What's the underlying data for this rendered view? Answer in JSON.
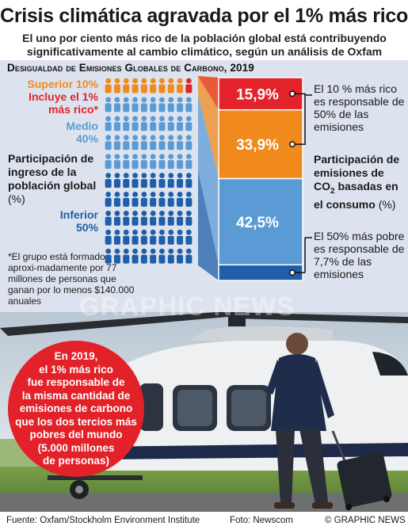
{
  "title": "Crisis climática agravada por el 1% más rico",
  "subtitle": "El uno por ciento más rico de la población global está contribuyendo significativamente al cambio climático, según un análisis de Oxfam",
  "section_title": "Desigualdad de Emisiones Globales de Carbono, 2019",
  "labels": {
    "top": "Superior 10%",
    "rich": "Incluye el 1% más rico*",
    "mid_name": "Medio",
    "mid_pct": "40%",
    "low_name": "Inferior",
    "low_pct": "50%"
  },
  "income_title": {
    "text": "Participación de ingreso de la población global",
    "unit": "(%)"
  },
  "emissions_title": {
    "pre": "Participación de emisiones de CO",
    "sub": "2",
    "post": " basadas en el consumo",
    "unit": "(%)"
  },
  "footnote": "*El grupo está formado aproxi-madamente por 77 millones de personas que ganan por lo menos $140.000 anuales",
  "notes": {
    "top": "El 10 % más rico es responsable de 50% de las emisiones",
    "bottom": "El 50% más pobre es responsable de 7,7% de las emisiones"
  },
  "callout": [
    "En 2019,",
    "el 1% más rico",
    "fue responsable de",
    "la misma cantidad de",
    "emisiones de carbono",
    "que los dos tercios más",
    "pobres del mundo",
    "(5.000 millones",
    "de personas)"
  ],
  "watermark": "GRAPHIC NEWS",
  "footer": {
    "source": "Fuente: Oxfam/Stockholm Environment Institute",
    "photo": "Foto: Newscom",
    "brand": "© GRAPHIC NEWS"
  },
  "colors": {
    "top10": "#f08a1c",
    "top1": "#e3232b",
    "middle": "#5b9bd5",
    "bottom": "#1f5ea8",
    "panel": "#dde3ee"
  },
  "chart_data": {
    "type": "bar",
    "title": "Desigualdad de Emisiones Globales de Carbono, 2019",
    "population": {
      "rows": 10,
      "cols": 10,
      "groups": [
        {
          "name": "Superior 10%",
          "share": 10,
          "color": "#f08a1c"
        },
        {
          "name": "Medio 40%",
          "share": 40,
          "color": "#5b9bd5"
        },
        {
          "name": "Inferior 50%",
          "share": 50,
          "color": "#1f5ea8"
        }
      ],
      "top1_highlight": 1
    },
    "emissions": {
      "stack_order": "top-to-bottom",
      "segments": [
        {
          "group": "Top 1%",
          "value": 15.9,
          "label": "15,9%",
          "color": "#e3232b"
        },
        {
          "group": "Top 10% (rest)",
          "value": 33.9,
          "label": "33,9%",
          "color": "#f08a1c"
        },
        {
          "group": "Middle 40%",
          "value": 42.5,
          "label": "42,5%",
          "color": "#5b9bd5"
        },
        {
          "group": "Bottom 50%",
          "value": 7.7,
          "label": "7,7%",
          "color": "#1f5ea8"
        }
      ],
      "total": 100
    }
  }
}
